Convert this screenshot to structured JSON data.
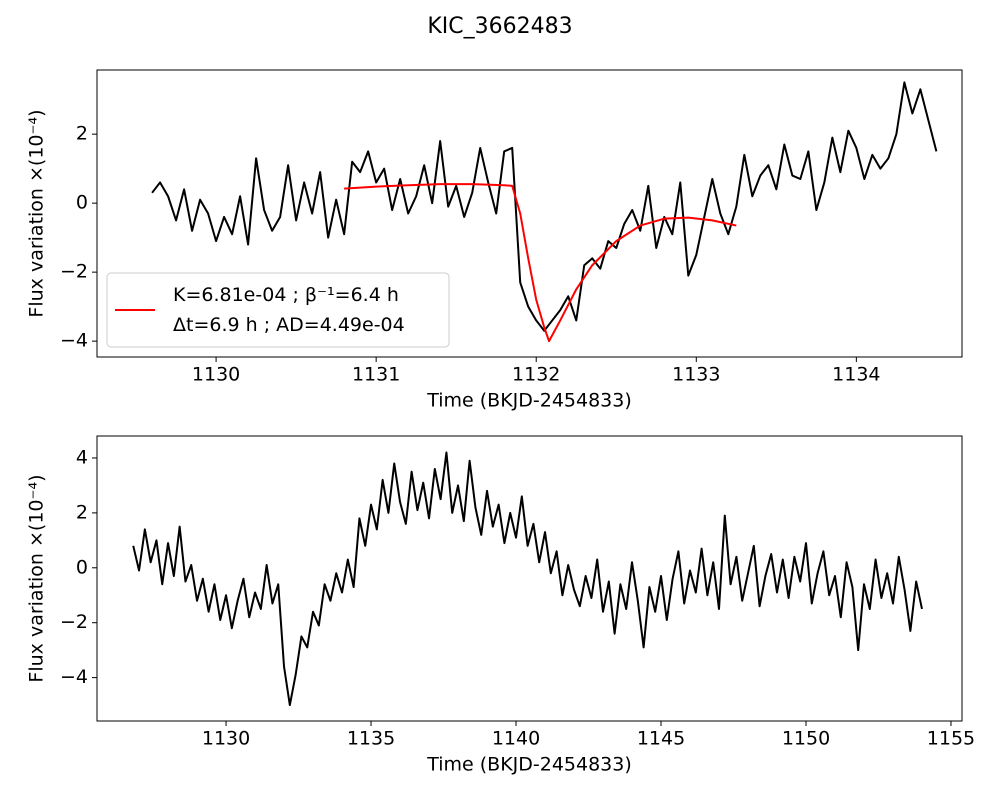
{
  "title": "KIC_3662483",
  "chart_data": [
    {
      "type": "line",
      "xlabel": "Time (BKJD-2454833)",
      "ylabel": "Flux variation ×(10⁻⁴)",
      "xlim": [
        1129.256,
        1134.66
      ],
      "ylim": [
        -4.46,
        3.86
      ],
      "xticks": [
        1130,
        1131,
        1132,
        1133,
        1134
      ],
      "yticks": [
        {
          "value": -4,
          "label": "−4"
        },
        {
          "value": -2,
          "label": "−2"
        },
        0,
        2
      ],
      "legend": "lower left",
      "series": [
        {
          "color": "#000000",
          "x": [
            1129.6,
            1129.65,
            1129.7,
            1129.75,
            1129.8,
            1129.85,
            1129.9,
            1129.95,
            1130.0,
            1130.05,
            1130.1,
            1130.15,
            1130.2,
            1130.25,
            1130.3,
            1130.35,
            1130.4,
            1130.45,
            1130.5,
            1130.55,
            1130.6,
            1130.65,
            1130.7,
            1130.75,
            1130.8,
            1130.85,
            1130.9,
            1130.95,
            1131.0,
            1131.05,
            1131.1,
            1131.15,
            1131.2,
            1131.25,
            1131.3,
            1131.35,
            1131.4,
            1131.45,
            1131.5,
            1131.55,
            1131.6,
            1131.65,
            1131.7,
            1131.75,
            1131.8,
            1131.85,
            1131.9,
            1131.95,
            1132.0,
            1132.05,
            1132.1,
            1132.15,
            1132.2,
            1132.25,
            1132.3,
            1132.35,
            1132.4,
            1132.45,
            1132.5,
            1132.55,
            1132.6,
            1132.65,
            1132.7,
            1132.75,
            1132.8,
            1132.85,
            1132.9,
            1132.95,
            1133.0,
            1133.05,
            1133.1,
            1133.15,
            1133.2,
            1133.25,
            1133.3,
            1133.35,
            1133.4,
            1133.45,
            1133.5,
            1133.55,
            1133.6,
            1133.65,
            1133.7,
            1133.75,
            1133.8,
            1133.85,
            1133.9,
            1133.95,
            1134.0,
            1134.05,
            1134.1,
            1134.15,
            1134.2,
            1134.25,
            1134.3,
            1134.35,
            1134.4,
            1134.45,
            1134.5
          ],
          "values": [
            0.3,
            0.6,
            0.2,
            -0.5,
            0.4,
            -0.8,
            0.1,
            -0.3,
            -1.1,
            -0.4,
            -0.9,
            0.2,
            -1.2,
            1.3,
            -0.2,
            -0.8,
            -0.4,
            1.1,
            -0.5,
            0.6,
            -0.3,
            0.9,
            -1.0,
            0.1,
            -0.9,
            1.2,
            0.9,
            1.5,
            0.6,
            1.0,
            -0.2,
            0.7,
            -0.3,
            0.2,
            1.1,
            0.0,
            1.8,
            -0.1,
            0.5,
            -0.4,
            0.3,
            1.6,
            0.6,
            -0.3,
            1.5,
            1.6,
            -2.3,
            -3.0,
            -3.4,
            -3.7,
            -3.4,
            -3.1,
            -2.7,
            -3.4,
            -1.8,
            -1.6,
            -1.9,
            -1.1,
            -1.3,
            -0.6,
            -0.2,
            -0.8,
            0.5,
            -1.3,
            -0.4,
            -0.9,
            0.6,
            -2.1,
            -1.5,
            -0.4,
            0.7,
            -0.3,
            -0.9,
            -0.1,
            1.4,
            0.2,
            0.8,
            1.1,
            0.4,
            1.7,
            0.8,
            0.7,
            1.5,
            -0.2,
            0.6,
            1.9,
            0.9,
            2.1,
            1.6,
            0.7,
            1.4,
            1.0,
            1.3,
            2.0,
            3.5,
            2.6,
            3.3,
            2.4,
            1.5
          ]
        },
        {
          "name": "K=6.81e-04 ; β⁻¹=6.4 h\nΔt=6.9 h ; AD=4.49e-04",
          "color": "#ff0000",
          "x": [
            1130.8,
            1131.0,
            1131.2,
            1131.4,
            1131.6,
            1131.8,
            1131.85,
            1131.9,
            1131.95,
            1132.0,
            1132.05,
            1132.08,
            1132.15,
            1132.25,
            1132.35,
            1132.5,
            1132.65,
            1132.8,
            1132.95,
            1133.1,
            1133.25
          ],
          "values": [
            0.42,
            0.48,
            0.52,
            0.55,
            0.55,
            0.52,
            0.5,
            -0.3,
            -1.6,
            -2.8,
            -3.6,
            -4.0,
            -3.4,
            -2.5,
            -1.8,
            -1.1,
            -0.65,
            -0.45,
            -0.42,
            -0.5,
            -0.65
          ]
        }
      ]
    },
    {
      "type": "line",
      "xlabel": "Time (BKJD-2454833)",
      "ylabel": "Flux variation ×(10⁻⁴)",
      "xlim": [
        1125.55,
        1155.38
      ],
      "ylim": [
        -5.58,
        4.8
      ],
      "xticks": [
        1130,
        1135,
        1140,
        1145,
        1150,
        1155
      ],
      "yticks": [
        {
          "value": -4,
          "label": "−4"
        },
        {
          "value": -2,
          "label": "−2"
        },
        0,
        2,
        4
      ],
      "series": [
        {
          "color": "#000000",
          "x": [
            1126.8,
            1127.0,
            1127.2,
            1127.4,
            1127.6,
            1127.8,
            1128.0,
            1128.2,
            1128.4,
            1128.6,
            1128.8,
            1129.0,
            1129.2,
            1129.4,
            1129.6,
            1129.8,
            1130.0,
            1130.2,
            1130.4,
            1130.6,
            1130.8,
            1131.0,
            1131.2,
            1131.4,
            1131.6,
            1131.8,
            1132.0,
            1132.2,
            1132.4,
            1132.6,
            1132.8,
            1133.0,
            1133.2,
            1133.4,
            1133.6,
            1133.8,
            1134.0,
            1134.2,
            1134.4,
            1134.6,
            1134.8,
            1135.0,
            1135.2,
            1135.4,
            1135.6,
            1135.8,
            1136.0,
            1136.2,
            1136.4,
            1136.6,
            1136.8,
            1137.0,
            1137.2,
            1137.4,
            1137.6,
            1137.8,
            1138.0,
            1138.2,
            1138.4,
            1138.6,
            1138.8,
            1139.0,
            1139.2,
            1139.4,
            1139.6,
            1139.8,
            1140.0,
            1140.2,
            1140.4,
            1140.6,
            1140.8,
            1141.0,
            1141.2,
            1141.4,
            1141.6,
            1141.8,
            1142.0,
            1142.2,
            1142.4,
            1142.6,
            1142.8,
            1143.0,
            1143.2,
            1143.4,
            1143.6,
            1143.8,
            1144.0,
            1144.2,
            1144.4,
            1144.6,
            1144.8,
            1145.0,
            1145.2,
            1145.4,
            1145.6,
            1145.8,
            1146.0,
            1146.2,
            1146.4,
            1146.6,
            1146.8,
            1147.0,
            1147.2,
            1147.4,
            1147.6,
            1147.8,
            1148.0,
            1148.2,
            1148.4,
            1148.6,
            1148.8,
            1149.0,
            1149.2,
            1149.4,
            1149.6,
            1149.8,
            1150.0,
            1150.2,
            1150.4,
            1150.6,
            1150.8,
            1151.0,
            1151.2,
            1151.4,
            1151.6,
            1151.8,
            1152.0,
            1152.2,
            1152.4,
            1152.6,
            1152.8,
            1153.0,
            1153.2,
            1153.4,
            1153.6,
            1153.8,
            1154.0
          ],
          "values": [
            0.8,
            -0.1,
            1.4,
            0.2,
            1.0,
            -0.6,
            0.9,
            -0.3,
            1.5,
            -0.5,
            0.1,
            -1.2,
            -0.4,
            -1.6,
            -0.6,
            -1.9,
            -1.0,
            -2.2,
            -1.2,
            -0.4,
            -1.8,
            -0.9,
            -1.5,
            0.1,
            -1.3,
            -0.6,
            -3.6,
            -5.0,
            -3.9,
            -2.5,
            -2.9,
            -1.6,
            -2.1,
            -0.6,
            -1.2,
            -0.2,
            -0.9,
            0.3,
            -0.7,
            1.8,
            0.8,
            2.3,
            1.4,
            3.2,
            2.0,
            3.8,
            2.4,
            1.6,
            3.5,
            2.1,
            3.1,
            1.8,
            3.6,
            2.5,
            4.2,
            2.0,
            3.0,
            1.7,
            3.9,
            2.2,
            1.2,
            2.8,
            1.5,
            2.3,
            0.9,
            2.0,
            1.1,
            2.6,
            0.8,
            1.6,
            0.2,
            1.3,
            -0.2,
            0.6,
            -1.0,
            0.1,
            -0.8,
            -1.4,
            -0.3,
            -1.1,
            0.3,
            -1.6,
            -0.5,
            -2.4,
            -0.6,
            -1.5,
            0.2,
            -1.2,
            -2.9,
            -0.7,
            -1.6,
            -0.3,
            -1.9,
            -0.4,
            0.6,
            -1.3,
            -0.1,
            -0.9,
            0.7,
            -1.0,
            0.2,
            -1.5,
            1.9,
            -0.6,
            0.4,
            -1.2,
            -0.2,
            0.8,
            -1.4,
            -0.3,
            0.5,
            -0.9,
            0.3,
            -1.1,
            0.4,
            -0.5,
            0.9,
            -1.3,
            -0.2,
            0.6,
            -1.0,
            -0.3,
            -1.8,
            0.2,
            -0.7,
            -3.0,
            -0.6,
            -1.5,
            0.3,
            -1.1,
            -0.2,
            -1.3,
            0.4,
            -0.8,
            -2.3,
            -0.5,
            -1.5
          ]
        }
      ]
    }
  ]
}
